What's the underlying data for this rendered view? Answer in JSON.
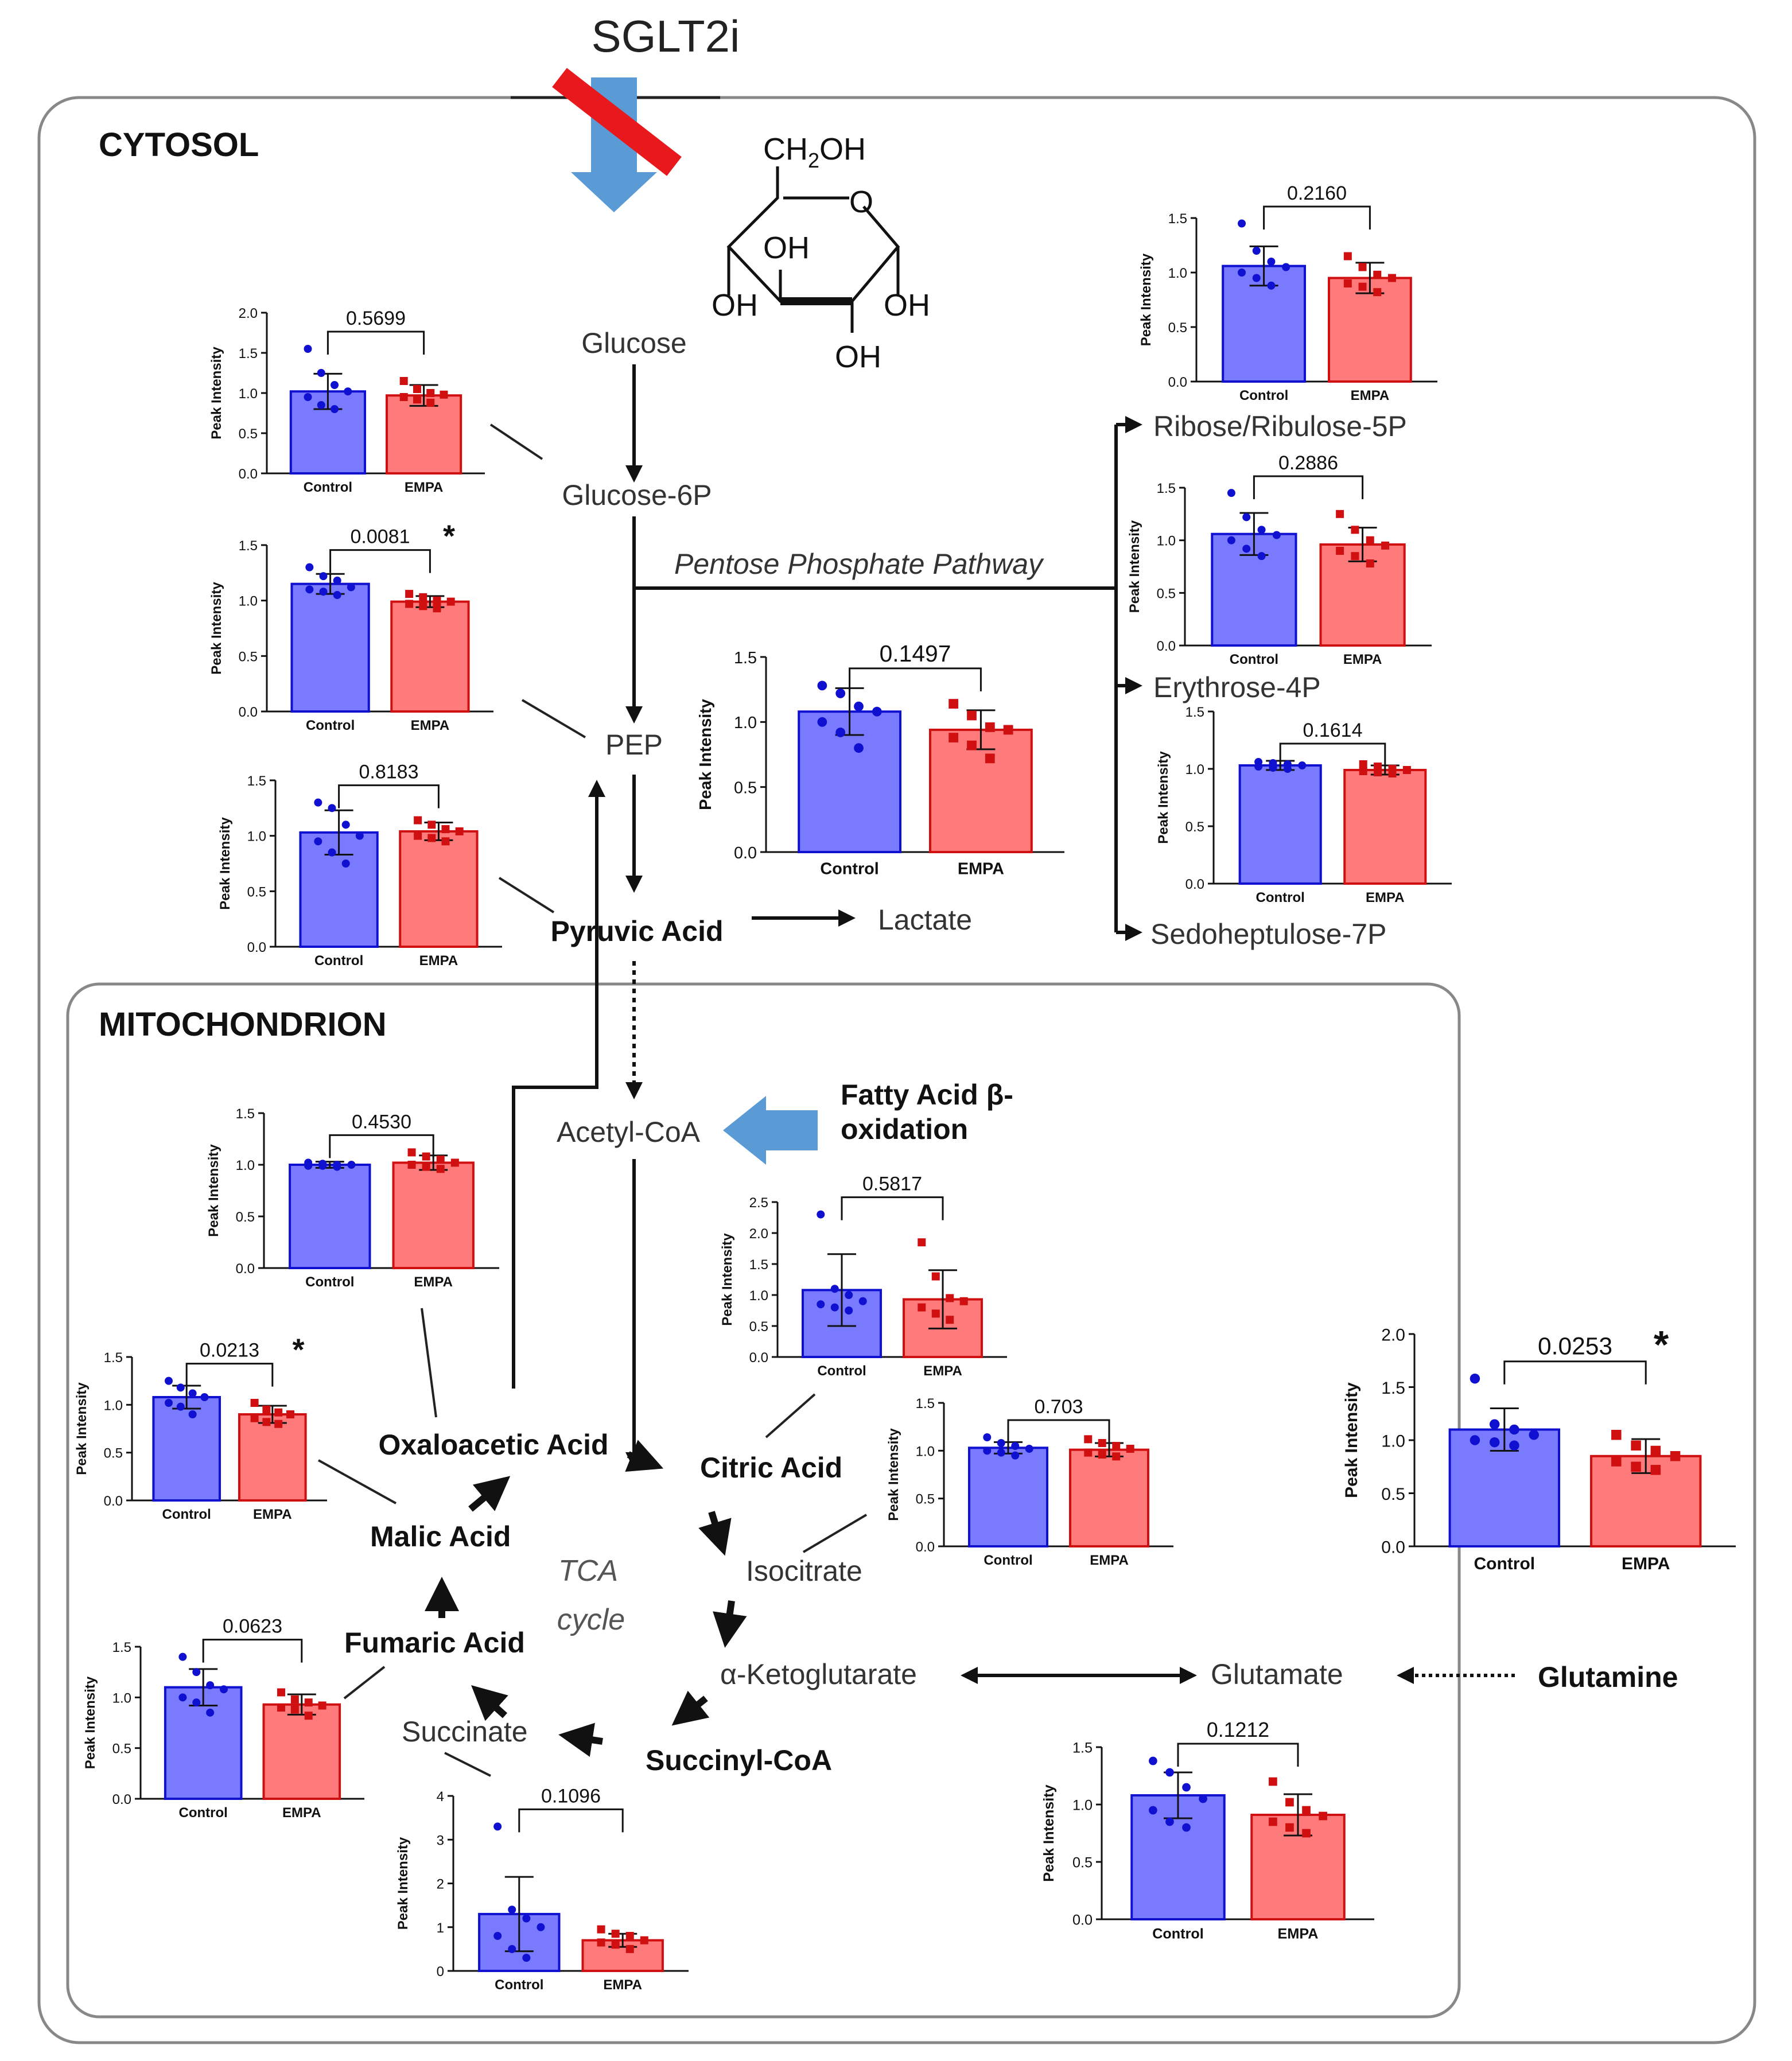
{
  "header": {
    "drug": "SGLT2i"
  },
  "regions": {
    "cytosol": "CYTOSOL",
    "mitochondrion": "MITOCHONDRION"
  },
  "molecule": {
    "ch2oh": "CH",
    "ch2oh_sub": "2",
    "ch2oh_end": "OH",
    "ring_o": "O",
    "oh": "OH"
  },
  "metabolites": {
    "glucose": "Glucose",
    "g6p": "Glucose-6P",
    "pep": "PEP",
    "pyruvic": "Pyruvic Acid",
    "lactate": "Lactate",
    "r5p": "Ribose/Ribulose-5P",
    "e4p": "Erythrose-4P",
    "s7p": "Sedoheptulose-7P",
    "acetylcoa": "Acetyl-CoA",
    "fatty1": "Fatty Acid β-",
    "fatty2": "oxidation",
    "oaa": "Oxaloacetic Acid",
    "citric": "Citric Acid",
    "isocitrate": "Isocitrate",
    "akg": "α-Ketoglutarate",
    "succoa": "Succinyl-CoA",
    "succinate": "Succinate",
    "fumaric": "Fumaric Acid",
    "malic": "Malic Acid",
    "glutamate": "Glutamate",
    "glutamine": "Glutamine"
  },
  "pathway": {
    "ppp": "Pentose Phosphate Pathway",
    "tca1": "TCA",
    "tca2": "cycle"
  },
  "colors": {
    "control": "#7a7aff",
    "control_edge": "#1010d0",
    "empa": "#ff7a7a",
    "empa_edge": "#d01010",
    "arrow_blue": "#5b9bd5",
    "inhibit": "#e8191c"
  },
  "chart_data": [
    {
      "id": "g6p",
      "type": "bar",
      "categories": [
        "Control",
        "EMPA"
      ],
      "values": [
        1.02,
        0.97
      ],
      "p": "0.5699",
      "sig": "",
      "ylim": [
        0,
        2.0
      ],
      "ticks": [
        "0.0",
        "0.5",
        "1.0",
        "1.5",
        "2.0"
      ],
      "ylabel": "Peak Intensity",
      "points": [
        [
          1.55,
          1.25,
          1.1,
          1.02,
          0.95,
          0.85,
          0.8
        ],
        [
          1.15,
          1.05,
          1.0,
          0.98,
          0.95,
          0.92,
          0.88
        ]
      ],
      "err": [
        0.22,
        0.13
      ]
    },
    {
      "id": "pep",
      "type": "bar",
      "categories": [
        "Control",
        "EMPA"
      ],
      "values": [
        1.15,
        0.99
      ],
      "p": "0.0081",
      "sig": "*",
      "ylim": [
        0,
        1.5
      ],
      "ticks": [
        "0.0",
        "0.5",
        "1.0",
        "1.5"
      ],
      "ylabel": "Peak Intensity",
      "points": [
        [
          1.3,
          1.22,
          1.18,
          1.12,
          1.1,
          1.08,
          1.05
        ],
        [
          1.06,
          1.03,
          1.0,
          0.99,
          0.97,
          0.95,
          0.93
        ]
      ],
      "err": [
        0.09,
        0.05
      ]
    },
    {
      "id": "pyruvic",
      "type": "bar",
      "categories": [
        "Control",
        "EMPA"
      ],
      "values": [
        1.03,
        1.04
      ],
      "p": "0.8183",
      "sig": "",
      "ylim": [
        0,
        1.5
      ],
      "ticks": [
        "0.0",
        "0.5",
        "1.0",
        "1.5"
      ],
      "ylabel": "Peak Intensity",
      "points": [
        [
          1.3,
          1.25,
          1.1,
          1.0,
          0.95,
          0.85,
          0.75
        ],
        [
          1.14,
          1.1,
          1.06,
          1.04,
          1.0,
          0.98,
          0.95
        ]
      ],
      "err": [
        0.2,
        0.08
      ]
    },
    {
      "id": "lactate",
      "type": "bar",
      "categories": [
        "Control",
        "EMPA"
      ],
      "values": [
        1.08,
        0.94
      ],
      "p": "0.1497",
      "sig": "",
      "ylim": [
        0,
        1.5
      ],
      "ticks": [
        "0.0",
        "0.5",
        "1.0",
        "1.5"
      ],
      "ylabel": "Peak Intensity",
      "points": [
        [
          1.28,
          1.22,
          1.12,
          1.08,
          1.0,
          0.92,
          0.8
        ],
        [
          1.14,
          1.05,
          0.96,
          0.94,
          0.88,
          0.82,
          0.72
        ]
      ],
      "err": [
        0.18,
        0.15
      ]
    },
    {
      "id": "r5p",
      "type": "bar",
      "categories": [
        "Control",
        "EMPA"
      ],
      "values": [
        1.06,
        0.95
      ],
      "p": "0.2160",
      "sig": "",
      "ylim": [
        0,
        1.5
      ],
      "ticks": [
        "0.0",
        "0.5",
        "1.0",
        "1.5"
      ],
      "ylabel": "Peak Intensity",
      "points": [
        [
          1.45,
          1.2,
          1.1,
          1.05,
          1.0,
          0.95,
          0.88
        ],
        [
          1.15,
          1.05,
          0.98,
          0.95,
          0.9,
          0.87,
          0.82
        ]
      ],
      "err": [
        0.18,
        0.14
      ]
    },
    {
      "id": "e4p",
      "type": "bar",
      "categories": [
        "Control",
        "EMPA"
      ],
      "values": [
        1.06,
        0.96
      ],
      "p": "0.2886",
      "sig": "",
      "ylim": [
        0,
        1.5
      ],
      "ticks": [
        "0.0",
        "0.5",
        "1.0",
        "1.5"
      ],
      "ylabel": "Peak Intensity",
      "points": [
        [
          1.45,
          1.22,
          1.1,
          1.05,
          1.0,
          0.92,
          0.85
        ],
        [
          1.25,
          1.1,
          1.0,
          0.95,
          0.9,
          0.85,
          0.78
        ]
      ],
      "err": [
        0.2,
        0.16
      ]
    },
    {
      "id": "s7p",
      "type": "bar",
      "categories": [
        "Control",
        "EMPA"
      ],
      "values": [
        1.03,
        0.99
      ],
      "p": "0.1614",
      "sig": "",
      "ylim": [
        0,
        1.5
      ],
      "ticks": [
        "0.0",
        "0.5",
        "1.0",
        "1.5"
      ],
      "ylabel": "Peak Intensity",
      "points": [
        [
          1.06,
          1.05,
          1.04,
          1.03,
          1.02,
          1.01,
          1.0
        ],
        [
          1.04,
          1.02,
          1.0,
          0.99,
          0.98,
          0.97,
          0.96
        ]
      ],
      "err": [
        0.04,
        0.04
      ]
    },
    {
      "id": "acetylcoa",
      "type": "bar",
      "categories": [
        "Control",
        "EMPA"
      ],
      "values": [
        1.0,
        1.02
      ],
      "p": "0.4530",
      "sig": "",
      "ylim": [
        0,
        1.5
      ],
      "ticks": [
        "0.0",
        "0.5",
        "1.0",
        "1.5"
      ],
      "ylabel": "Peak Intensity",
      "points": [
        [
          1.02,
          1.01,
          1.0,
          1.0,
          0.99,
          0.99,
          0.98
        ],
        [
          1.12,
          1.08,
          1.05,
          1.02,
          1.0,
          0.98,
          0.96
        ]
      ],
      "err": [
        0.03,
        0.07
      ]
    },
    {
      "id": "citric",
      "type": "bar",
      "categories": [
        "Control",
        "EMPA"
      ],
      "values": [
        1.08,
        0.93
      ],
      "p": "0.5817",
      "sig": "",
      "ylim": [
        0,
        2.5
      ],
      "ticks": [
        "0.0",
        "0.5",
        "1.0",
        "1.5",
        "2.0",
        "2.5"
      ],
      "ylabel": "Peak Intensity",
      "points": [
        [
          2.3,
          1.1,
          1.0,
          0.9,
          0.85,
          0.8,
          0.75
        ],
        [
          1.85,
          1.3,
          0.95,
          0.9,
          0.8,
          0.7,
          0.6
        ]
      ],
      "err": [
        0.58,
        0.47
      ]
    },
    {
      "id": "isocitrate",
      "type": "bar",
      "categories": [
        "Control",
        "EMPA"
      ],
      "values": [
        1.03,
        1.01
      ],
      "p": "0.703",
      "sig": "",
      "ylim": [
        0,
        1.5
      ],
      "ticks": [
        "0.0",
        "0.5",
        "1.0",
        "1.5"
      ],
      "ylabel": "Peak Intensity",
      "points": [
        [
          1.14,
          1.08,
          1.05,
          1.02,
          1.0,
          0.98,
          0.95
        ],
        [
          1.12,
          1.08,
          1.05,
          1.02,
          0.98,
          0.96,
          0.94
        ]
      ],
      "err": [
        0.06,
        0.07
      ]
    },
    {
      "id": "glutamate",
      "type": "bar",
      "categories": [
        "Control",
        "EMPA"
      ],
      "values": [
        1.1,
        0.85
      ],
      "p": "0.0253",
      "sig": "*",
      "ylim": [
        0,
        2.0
      ],
      "ticks": [
        "0.0",
        "0.5",
        "1.0",
        "1.5",
        "2.0"
      ],
      "ylabel": "Peak Intensity",
      "points": [
        [
          1.58,
          1.15,
          1.1,
          1.05,
          1.0,
          0.98,
          0.95
        ],
        [
          1.05,
          0.95,
          0.9,
          0.85,
          0.8,
          0.75,
          0.72
        ]
      ],
      "err": [
        0.2,
        0.16
      ]
    },
    {
      "id": "malic",
      "type": "bar",
      "categories": [
        "Control",
        "EMPA"
      ],
      "values": [
        1.08,
        0.9
      ],
      "p": "0.0213",
      "sig": "*",
      "ylim": [
        0,
        1.5
      ],
      "ticks": [
        "0.0",
        "0.5",
        "1.0",
        "1.5"
      ],
      "ylabel": "Peak Intensity",
      "points": [
        [
          1.25,
          1.18,
          1.12,
          1.08,
          1.02,
          0.98,
          0.9
        ],
        [
          1.02,
          0.95,
          0.92,
          0.9,
          0.86,
          0.82,
          0.8
        ]
      ],
      "err": [
        0.12,
        0.09
      ]
    },
    {
      "id": "fumaric",
      "type": "bar",
      "categories": [
        "Control",
        "EMPA"
      ],
      "values": [
        1.1,
        0.93
      ],
      "p": "0.0623",
      "sig": "",
      "ylim": [
        0,
        1.5
      ],
      "ticks": [
        "0.0",
        "0.5",
        "1.0",
        "1.5"
      ],
      "ylabel": "Peak Intensity",
      "points": [
        [
          1.4,
          1.25,
          1.12,
          1.08,
          1.0,
          0.95,
          0.85
        ],
        [
          1.05,
          0.98,
          0.95,
          0.92,
          0.9,
          0.88,
          0.82
        ]
      ],
      "err": [
        0.18,
        0.1
      ]
    },
    {
      "id": "succinate",
      "type": "bar",
      "categories": [
        "Control",
        "EMPA"
      ],
      "values": [
        1.3,
        0.7
      ],
      "p": "0.1096",
      "sig": "",
      "ylim": [
        0,
        4
      ],
      "ticks": [
        "0",
        "1",
        "2",
        "3",
        "4"
      ],
      "ylabel": "Peak Intensity",
      "points": [
        [
          3.3,
          1.4,
          1.2,
          1.0,
          0.8,
          0.5,
          0.3
        ],
        [
          0.95,
          0.85,
          0.8,
          0.7,
          0.65,
          0.6,
          0.5
        ]
      ],
      "err": [
        0.85,
        0.15
      ]
    },
    {
      "id": "glutamate2",
      "type": "bar",
      "categories": [
        "Control",
        "EMPA"
      ],
      "values": [
        1.08,
        0.91
      ],
      "p": "0.1212",
      "sig": "",
      "ylim": [
        0,
        1.5
      ],
      "ticks": [
        "0.0",
        "0.5",
        "1.0",
        "1.5"
      ],
      "ylabel": "Peak Intensity",
      "points": [
        [
          1.38,
          1.28,
          1.15,
          1.05,
          0.95,
          0.85,
          0.8
        ],
        [
          1.2,
          1.02,
          0.95,
          0.9,
          0.85,
          0.8,
          0.75
        ]
      ],
      "err": [
        0.2,
        0.18
      ]
    }
  ]
}
